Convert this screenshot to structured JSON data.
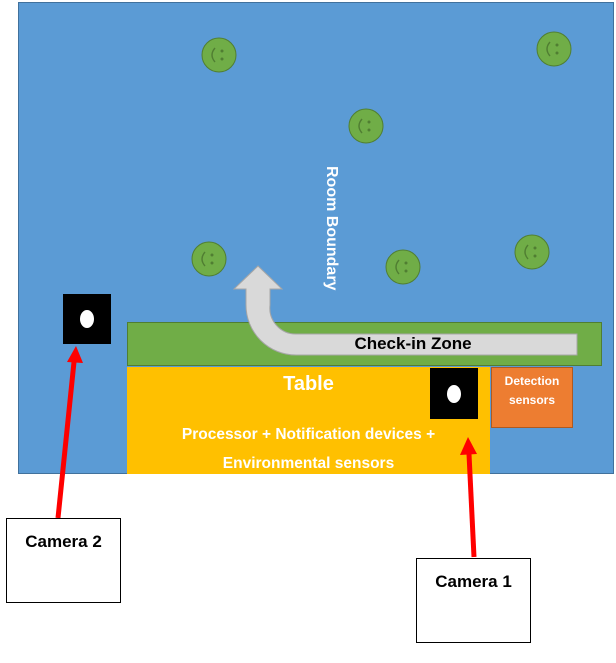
{
  "room": {
    "boundary_label": "Room Boundary"
  },
  "checkin": {
    "label": "Check-in Zone"
  },
  "table": {
    "title": "Table",
    "description": "Processor + Notification  devices +\nEnvironmental sensors"
  },
  "detection": {
    "label": "Detection\nsensors"
  },
  "cameras": {
    "camera1_label": "Camera 1",
    "camera2_label": "Camera 2"
  },
  "colors": {
    "room": "#5b9bd5",
    "checkin": "#70ad47",
    "table": "#ffc000",
    "detection": "#ed7d31",
    "people": "#70ad47",
    "arrow_red": "#ff0000",
    "path_arrow": "#d9d9d9"
  },
  "icons": {
    "person": "smiley-face-icon",
    "camera": "camera-icon"
  }
}
